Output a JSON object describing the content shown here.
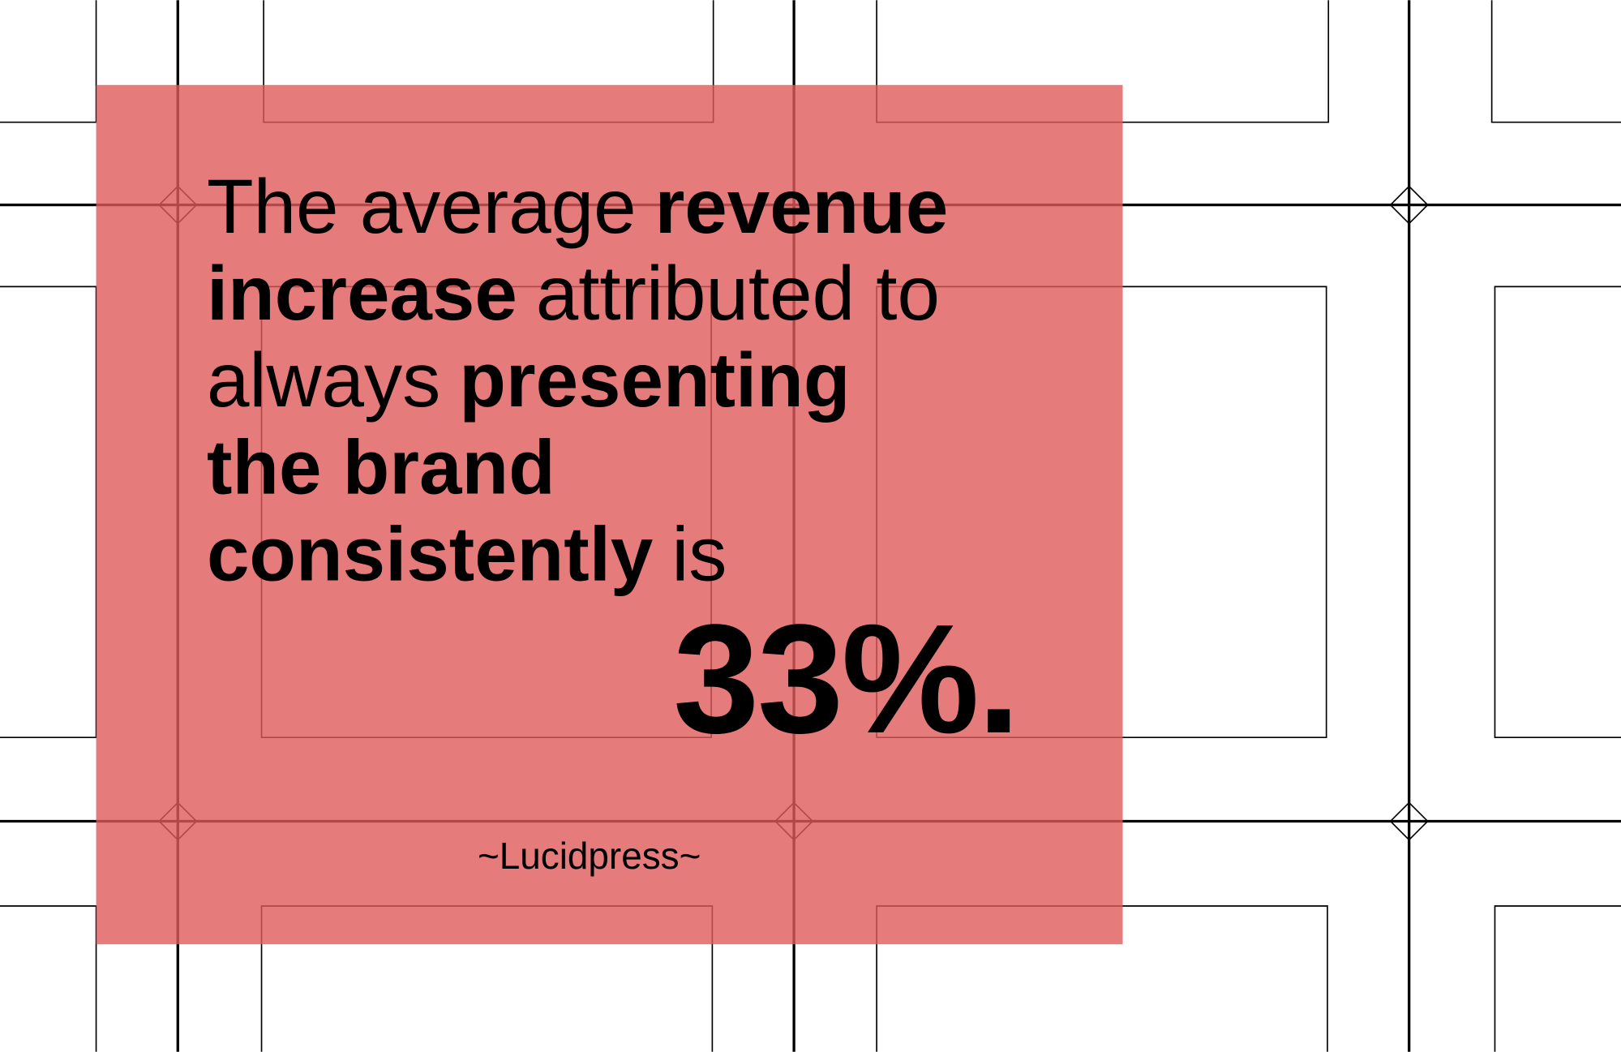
{
  "quote": {
    "lines": [
      [
        {
          "text": "The average",
          "bold": false
        },
        {
          "text": "revenue",
          "bold": true
        }
      ],
      [
        {
          "text": "increase",
          "bold": true
        },
        {
          "text": "attributed to",
          "bold": false
        }
      ],
      [
        {
          "text": "always",
          "bold": false
        },
        {
          "text": "presenting",
          "bold": true
        }
      ],
      [
        {
          "text": "the brand",
          "bold": true
        }
      ],
      [
        {
          "text": "consistently",
          "bold": true
        },
        {
          "text": "is",
          "bold": false
        }
      ]
    ],
    "figure": "33%.",
    "source": "~Lucidpress~"
  }
}
